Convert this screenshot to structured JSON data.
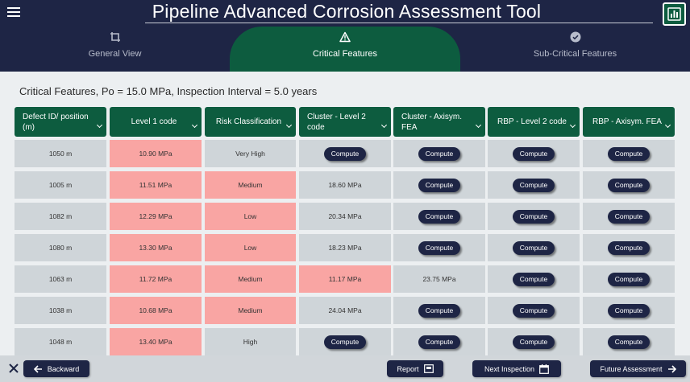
{
  "header": {
    "title": "Pipeline Advanced Corrosion Assessment Tool",
    "menu_icon": "hamburger-menu-icon",
    "logo_icon": "bar-chart-icon"
  },
  "tabs": [
    {
      "label": "General View",
      "icon": "crop-frame-icon",
      "active": false
    },
    {
      "label": "Critical Features",
      "icon": "warning-triangle-icon",
      "active": true
    },
    {
      "label": "Sub-Critical Features",
      "icon": "check-circle-icon",
      "active": false
    }
  ],
  "subtitle": "Critical Features, Po = 15.0 MPa, Inspection Interval = 5.0 years",
  "table": {
    "columns": [
      "Defect ID/ position (m)",
      "Level 1 code",
      "Risk Classification",
      "Cluster - Level 2 code",
      "Cluster - Axisym. FEA",
      "RBP - Level 2 code",
      "RBP - Axisym. FEA"
    ],
    "compute_label": "Compute",
    "rows": [
      {
        "position": "1050 m",
        "level1": "10.90 MPa",
        "risk": "Very High",
        "cluster_l2": "Compute",
        "cluster_fea": "Compute",
        "rbp_l2": "Compute",
        "rbp_fea": "Compute",
        "highlight": [
          "level1"
        ]
      },
      {
        "position": "1005 m",
        "level1": "11.51 MPa",
        "risk": "Medium",
        "cluster_l2": "18.60 MPa",
        "cluster_fea": "Compute",
        "rbp_l2": "Compute",
        "rbp_fea": "Compute",
        "highlight": [
          "level1",
          "risk"
        ]
      },
      {
        "position": "1082 m",
        "level1": "12.29 MPa",
        "risk": "Low",
        "cluster_l2": "20.34 MPa",
        "cluster_fea": "Compute",
        "rbp_l2": "Compute",
        "rbp_fea": "Compute",
        "highlight": [
          "level1",
          "risk"
        ]
      },
      {
        "position": "1080 m",
        "level1": "13.30 MPa",
        "risk": "Low",
        "cluster_l2": "18.23 MPa",
        "cluster_fea": "Compute",
        "rbp_l2": "Compute",
        "rbp_fea": "Compute",
        "highlight": [
          "level1",
          "risk"
        ]
      },
      {
        "position": "1063 m",
        "level1": "11.72 MPa",
        "risk": "Medium",
        "cluster_l2": "11.17 MPa",
        "cluster_fea": "23.75 MPa",
        "rbp_l2": "Compute",
        "rbp_fea": "Compute",
        "highlight": [
          "level1",
          "risk",
          "cluster_l2"
        ]
      },
      {
        "position": "1038 m",
        "level1": "10.68 MPa",
        "risk": "Medium",
        "cluster_l2": "24.04 MPa",
        "cluster_fea": "Compute",
        "rbp_l2": "Compute",
        "rbp_fea": "Compute",
        "highlight": [
          "level1",
          "risk"
        ]
      },
      {
        "position": "1048 m",
        "level1": "13.40 MPa",
        "risk": "High",
        "cluster_l2": "Compute",
        "cluster_fea": "Compute",
        "rbp_l2": "Compute",
        "rbp_fea": "Compute",
        "highlight": [
          "level1"
        ]
      }
    ]
  },
  "footer": {
    "close_icon": "close-icon",
    "backward_label": "Backward",
    "report_label": "Report",
    "next_inspection_label": "Next Inspection",
    "future_assessment_label": "Future Assessment"
  },
  "colors": {
    "navy": "#1e2545",
    "green": "#0d5c3f",
    "cell_gray": "#cfd5d9",
    "cell_red": "#f9a5a3"
  }
}
